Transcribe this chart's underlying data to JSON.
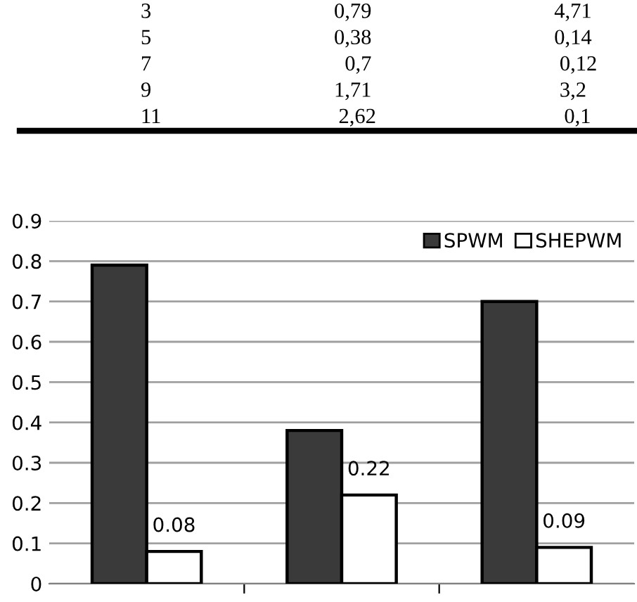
{
  "chart_data": [
    {
      "type": "other",
      "annotations": [
        "3                                  0,79                                  4,71",
        "5                                  0,38                                  0,14",
        "7                                    0,7                                   0,12",
        "9                                  1,71                                   3,2",
        "11                                 2,62                                   0,1"
      ]
    },
    {
      "type": "bar",
      "categories": [
        null,
        null,
        null
      ],
      "series": [
        {
          "name": "SPWM",
          "color": "#3a3a3a",
          "values": [
            0.79,
            0.38,
            0.7
          ]
        },
        {
          "name": "SHEPWM",
          "color": "#ffffff",
          "values": [
            0.08,
            0.22,
            0.09
          ],
          "value_labels": [
            "0.08",
            "0.22",
            "0.09"
          ]
        }
      ],
      "ylim": [
        0,
        0.9
      ],
      "yticks": [
        0,
        0.1,
        0.2,
        0.3,
        0.4,
        0.5,
        0.6,
        0.7,
        0.8,
        0.9
      ],
      "grid": "y",
      "legend": "top right"
    }
  ]
}
